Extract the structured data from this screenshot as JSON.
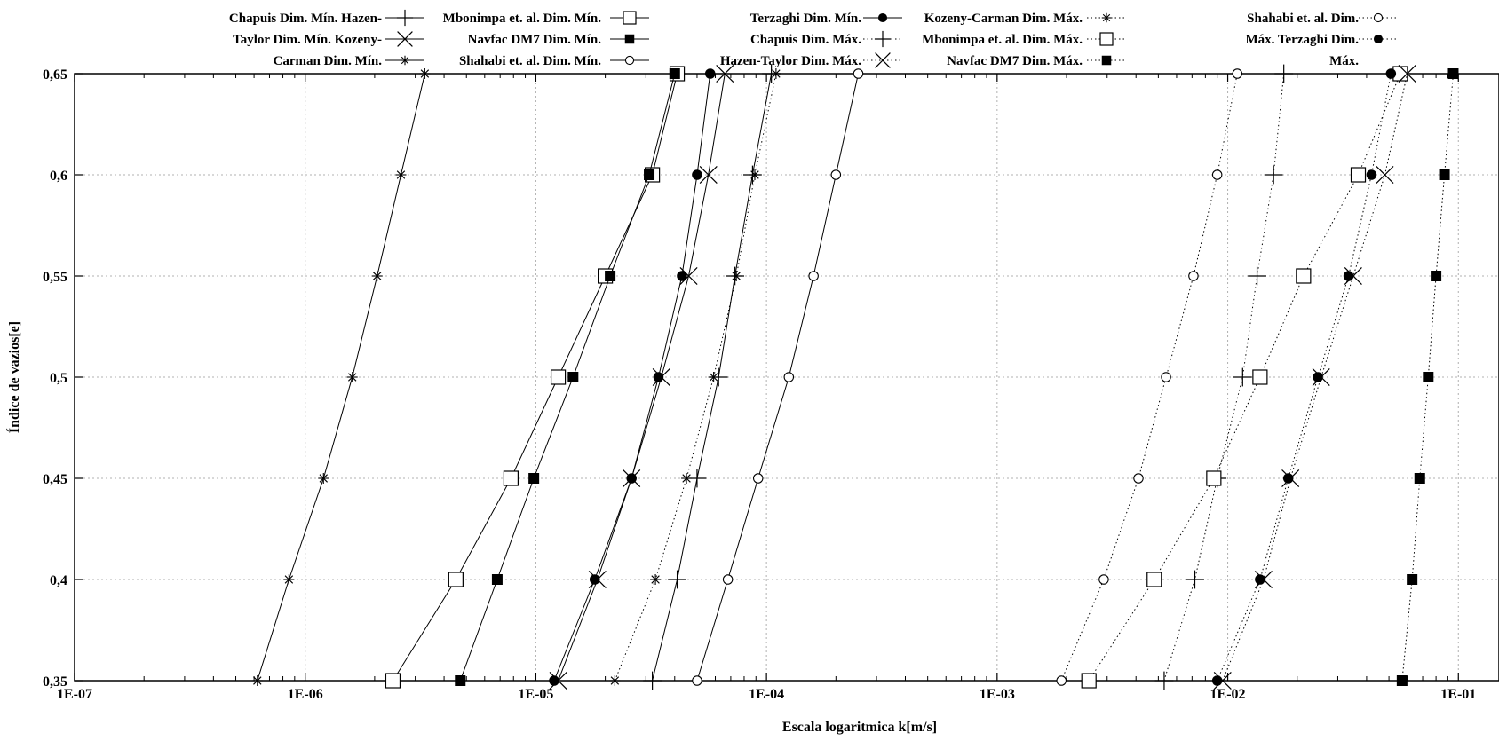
{
  "chart_data": {
    "type": "line",
    "title": "",
    "xlabel": "Escala logaritmica k[m/s]",
    "ylabel": "Índice de vazios[e]",
    "x_scale": "log",
    "xlim": [
      1e-07,
      0.15
    ],
    "ylim": [
      0.35,
      0.65
    ],
    "grid": true,
    "legend_position": "top",
    "x_ticks": [
      "1E-07",
      "1E-06",
      "1E-05",
      "1E-04",
      "1E-03",
      "1E-02",
      "1E-01"
    ],
    "x_tick_values": [
      1e-07,
      1e-06,
      1e-05,
      0.0001,
      0.001,
      0.01,
      0.1
    ],
    "y_ticks": [
      "0,35",
      "0,4",
      "0,45",
      "0,5",
      "0,55",
      "0,6",
      "0,65"
    ],
    "y_tick_values": [
      0.35,
      0.4,
      0.45,
      0.5,
      0.55,
      0.6,
      0.65
    ],
    "y": [
      0.35,
      0.4,
      0.45,
      0.5,
      0.55,
      0.6,
      0.65
    ],
    "series": [
      {
        "name": "Chapuis Dim. Mín.",
        "marker": "plus",
        "line": "solid",
        "x": [
          3.2e-05,
          4.1e-05,
          5e-05,
          6.2e-05,
          7.3e-05,
          8.7e-05,
          0.000105
        ]
      },
      {
        "name": "Mbonimpa et. al. Dim. Mín.",
        "marker": "open-square",
        "line": "solid",
        "x": [
          2.4e-06,
          4.5e-06,
          7.8e-06,
          1.25e-05,
          2e-05,
          3.2e-05,
          4.1e-05
        ]
      },
      {
        "name": "Terzaghi Dim. Mín.",
        "marker": "filled-circle",
        "line": "solid",
        "x": [
          1.2e-05,
          1.8e-05,
          2.6e-05,
          3.4e-05,
          4.3e-05,
          5e-05,
          5.7e-05
        ]
      },
      {
        "name": "Hazen-Taylor Dim. Mín.",
        "marker": "x",
        "line": "solid",
        "x": [
          1.25e-05,
          1.85e-05,
          2.6e-05,
          3.5e-05,
          4.6e-05,
          5.6e-05,
          6.6e-05
        ]
      },
      {
        "name": "Navfac DM7 Dim. Mín.",
        "marker": "filled-square",
        "line": "solid",
        "x": [
          4.7e-06,
          6.8e-06,
          9.8e-06,
          1.45e-05,
          2.1e-05,
          3.1e-05,
          4e-05
        ]
      },
      {
        "name": "Kozeny-Carman Dim. Mín.",
        "marker": "asterisk",
        "line": "solid",
        "x": [
          6.2e-07,
          8.5e-07,
          1.2e-06,
          1.6e-06,
          2.05e-06,
          2.6e-06,
          3.3e-06
        ]
      },
      {
        "name": "Shahabi et. al. Dim. Mín.",
        "marker": "open-circle",
        "line": "solid",
        "x": [
          5e-05,
          6.8e-05,
          9.2e-05,
          0.000125,
          0.00016,
          0.0002,
          0.00025
        ]
      },
      {
        "name": "Kozeny-Carman Dim. Máx.",
        "marker": "asterisk",
        "line": "dotted",
        "x": [
          2.2e-05,
          3.3e-05,
          4.5e-05,
          5.9e-05,
          7.4e-05,
          8.9e-05,
          0.00011
        ]
      },
      {
        "name": "Chapuis Dim. Máx.",
        "marker": "plus",
        "line": "dotted",
        "x": [
          0.0053,
          0.0072,
          0.009,
          0.0116,
          0.0134,
          0.0158,
          0.0175
        ]
      },
      {
        "name": "Mbonimpa et. al. Dim. Máx.",
        "marker": "open-square",
        "line": "dotted",
        "x": [
          0.0025,
          0.0048,
          0.0087,
          0.0138,
          0.0213,
          0.0368,
          0.056
        ]
      },
      {
        "name": "Navfac DM7 Dim. Máx.",
        "marker": "filled-square",
        "line": "dotted",
        "x": [
          0.057,
          0.063,
          0.068,
          0.074,
          0.08,
          0.087,
          0.095
        ]
      },
      {
        "name": "Shahabi et. al. Dim. Máx.",
        "marker": "open-circle",
        "line": "dotted",
        "x": [
          0.0019,
          0.0029,
          0.0041,
          0.0054,
          0.0071,
          0.009,
          0.011
        ]
      },
      {
        "name": "Terzaghi Dim. Máx.",
        "marker": "filled-circle",
        "line": "dotted",
        "x": [
          0.009,
          0.0138,
          0.0183,
          0.0246,
          0.0334,
          0.042,
          0.051
        ]
      },
      {
        "name": "Hazen-Taylor Dim. Máx.",
        "marker": "x",
        "line": "dotted",
        "x": [
          0.0095,
          0.0143,
          0.0187,
          0.0254,
          0.035,
          0.048,
          0.06
        ]
      }
    ]
  },
  "legend": {
    "col1": {
      "lines": [
        "Chapuis Dim. Mín. Hazen-",
        "Taylor Dim. Mín. Kozeny-",
        "Carman Dim. Mín."
      ],
      "markers": [
        "plus",
        "x",
        "asterisk"
      ]
    },
    "col2": {
      "lines": [
        "Mbonimpa et. al. Dim. Mín.",
        "Navfac DM7 Dim. Mín.",
        "Shahabi et. al. Dim. Mín."
      ],
      "markers": [
        "open-square",
        "filled-square",
        "open-circle"
      ]
    },
    "col3": {
      "lines": [
        "Terzaghi Dim. Mín.",
        "Chapuis Dim. Máx.",
        "Hazen-Taylor Dim. Máx."
      ],
      "markers": [
        "filled-circle",
        "plus",
        "x"
      ],
      "styles": [
        "solid",
        "dotted",
        "dotted"
      ]
    },
    "col4": {
      "lines": [
        "Kozeny-Carman Dim. Máx.",
        "Mbonimpa et. al. Dim. Máx.",
        "Navfac DM7 Dim. Máx."
      ],
      "markers": [
        "asterisk",
        "open-square",
        "filled-square"
      ]
    },
    "col5": {
      "lines": [
        "Shahabi et. al. Dim.",
        "Máx. Terzaghi Dim.",
        "Máx."
      ],
      "markers": [
        "open-circle",
        "filled-circle",
        null
      ]
    }
  }
}
